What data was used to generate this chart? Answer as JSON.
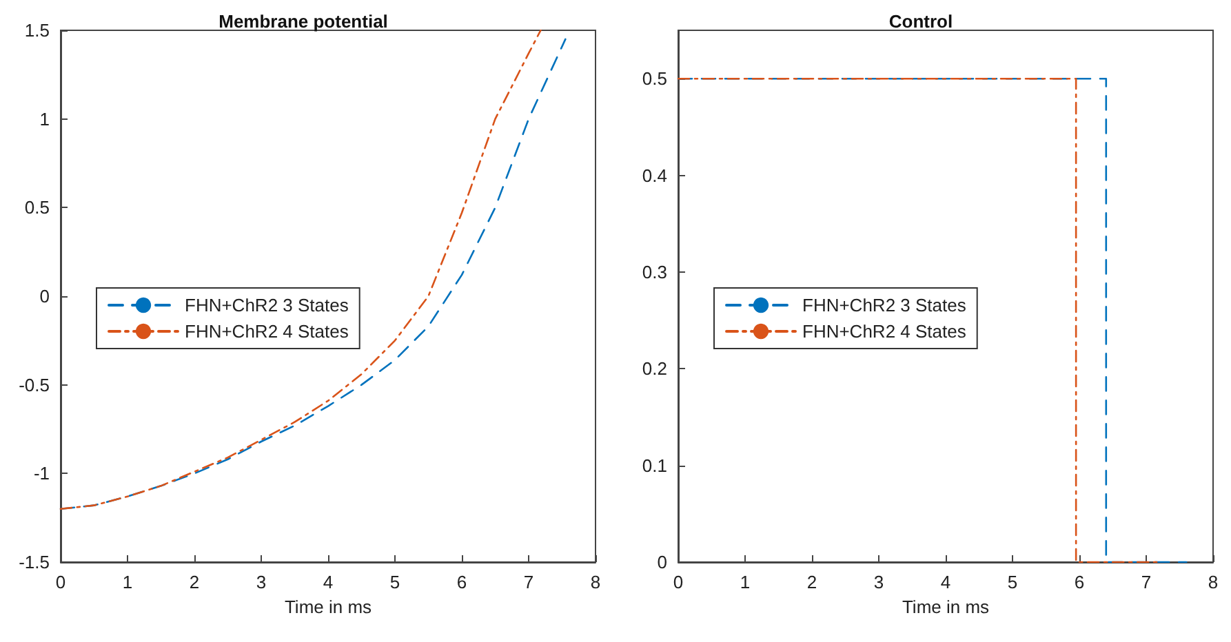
{
  "chart_data": [
    {
      "type": "line",
      "title": "Membrane potential",
      "xlabel": "Time in ms",
      "xlim": [
        0,
        8
      ],
      "xticks": [
        0,
        1,
        2,
        3,
        4,
        5,
        6,
        7,
        8
      ],
      "ylim": [
        -1.5,
        1.5
      ],
      "yticks": [
        -1.5,
        -1,
        -0.5,
        0,
        0.5,
        1,
        1.5
      ],
      "grid": false,
      "legend": "left",
      "marker": "none",
      "series": [
        {
          "name": "FHN+ChR2 3 States",
          "color": "#0072bd",
          "line_style": "dashed",
          "x": [
            0,
            0.5,
            1,
            1.5,
            2,
            2.5,
            3,
            3.5,
            4,
            4.5,
            5,
            5.5,
            6,
            6.5,
            7,
            7.55
          ],
          "values": [
            -1.2,
            -1.18,
            -1.13,
            -1.07,
            -1.0,
            -0.92,
            -0.82,
            -0.73,
            -0.62,
            -0.5,
            -0.36,
            -0.17,
            0.12,
            0.5,
            1.0,
            1.45
          ]
        },
        {
          "name": "FHN+ChR2 4 States",
          "color": "#d95319",
          "line_style": "dashdot",
          "x": [
            0,
            0.5,
            1,
            1.5,
            2,
            2.5,
            3,
            3.5,
            4,
            4.5,
            5,
            5.5,
            6,
            6.5,
            7,
            7.18
          ],
          "values": [
            -1.2,
            -1.18,
            -1.13,
            -1.07,
            -0.99,
            -0.91,
            -0.81,
            -0.71,
            -0.59,
            -0.44,
            -0.25,
            0.0,
            0.47,
            1.0,
            1.37,
            1.5
          ]
        }
      ]
    },
    {
      "type": "line",
      "title": "Control",
      "xlabel": "Time in ms",
      "xlim": [
        0,
        8
      ],
      "xticks": [
        0,
        1,
        2,
        3,
        4,
        5,
        6,
        7,
        8
      ],
      "ylim": [
        0,
        0.55
      ],
      "yticks": [
        0,
        0.1,
        0.2,
        0.3,
        0.4,
        0.5
      ],
      "grid": false,
      "legend": "left",
      "marker": "none",
      "series": [
        {
          "name": "FHN+ChR2 3 States",
          "color": "#0072bd",
          "line_style": "dashed",
          "x": [
            0,
            6.4,
            6.4,
            7.6
          ],
          "values": [
            0.5,
            0.5,
            0,
            0
          ]
        },
        {
          "name": "FHN+ChR2 4 States",
          "color": "#d95319",
          "line_style": "dashdot",
          "x": [
            0,
            5.95,
            5.95,
            7.2
          ],
          "values": [
            0.5,
            0.5,
            0,
            0
          ]
        }
      ]
    }
  ]
}
